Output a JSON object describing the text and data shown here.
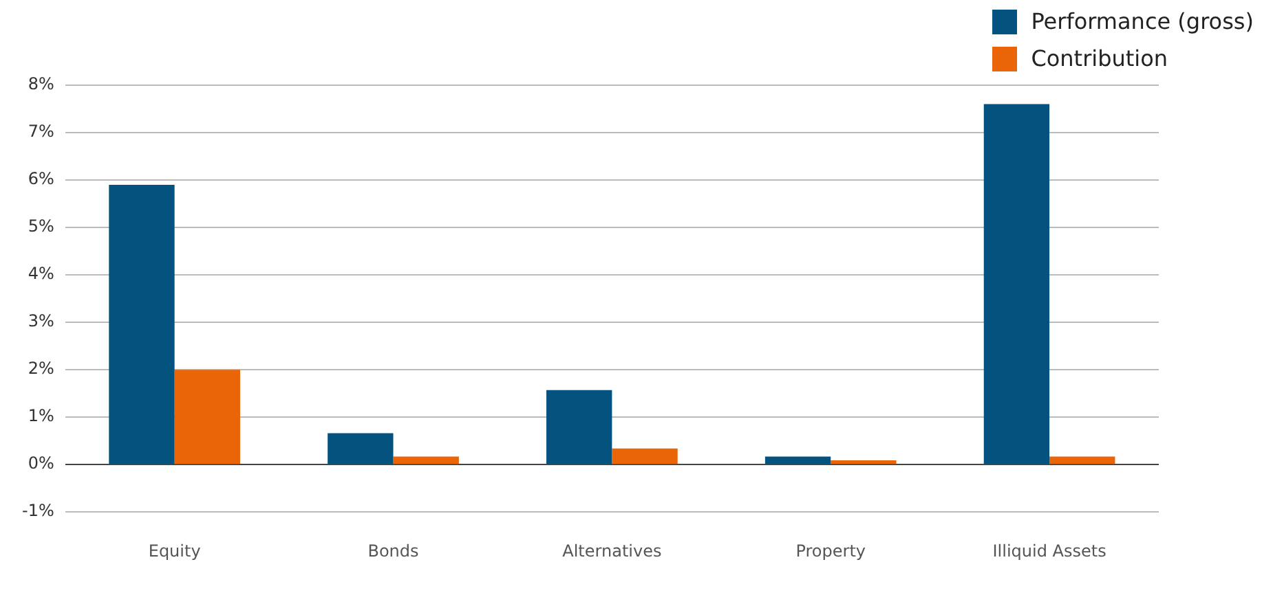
{
  "chart_data": {
    "type": "bar",
    "categories": [
      "Equity",
      "Bonds",
      "Alternatives",
      "Property",
      "Illiquid Assets"
    ],
    "series": [
      {
        "name": "Performance (gross)",
        "color": "#04527e",
        "values": [
          5.9,
          0.66,
          1.57,
          0.17,
          7.6
        ]
      },
      {
        "name": "Contribution",
        "color": "#ea6408",
        "values": [
          2.0,
          0.17,
          0.34,
          0.09,
          0.17
        ]
      }
    ],
    "ylim": [
      -1,
      8
    ],
    "yticks": [
      {
        "value": -1,
        "label": "-1%"
      },
      {
        "value": 0,
        "label": "0%"
      },
      {
        "value": 1,
        "label": "1%"
      },
      {
        "value": 2,
        "label": "2%"
      },
      {
        "value": 3,
        "label": "3%"
      },
      {
        "value": 4,
        "label": "4%"
      },
      {
        "value": 5,
        "label": "5%"
      },
      {
        "value": 6,
        "label": "6%"
      },
      {
        "value": 7,
        "label": "7%"
      },
      {
        "value": 8,
        "label": "8%"
      }
    ],
    "grid": "y",
    "legend": "top right"
  }
}
